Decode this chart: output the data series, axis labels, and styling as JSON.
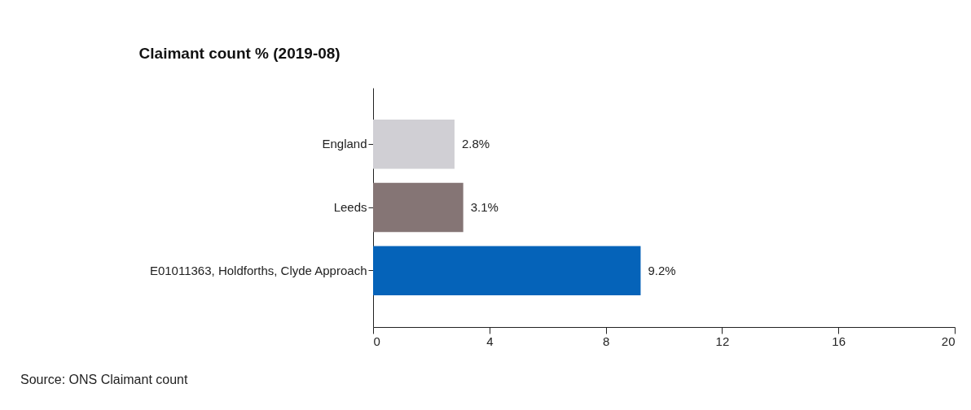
{
  "chart_data": {
    "type": "bar",
    "orientation": "horizontal",
    "title": "Claimant count % (2019-08)",
    "categories": [
      "England",
      "Leeds",
      "E01011363, Holdforths, Clyde Approach"
    ],
    "values": [
      2.8,
      3.1,
      9.2
    ],
    "colors": [
      "#d0cfd4",
      "#857575",
      "#0563b9"
    ],
    "value_labels": [
      "2.8%",
      "3.1%",
      "9.2%"
    ],
    "xlim": [
      0,
      20
    ],
    "xticks": [
      0,
      4,
      8,
      12,
      16,
      20
    ],
    "annotations": [
      "Source: ONS Claimant count"
    ]
  }
}
